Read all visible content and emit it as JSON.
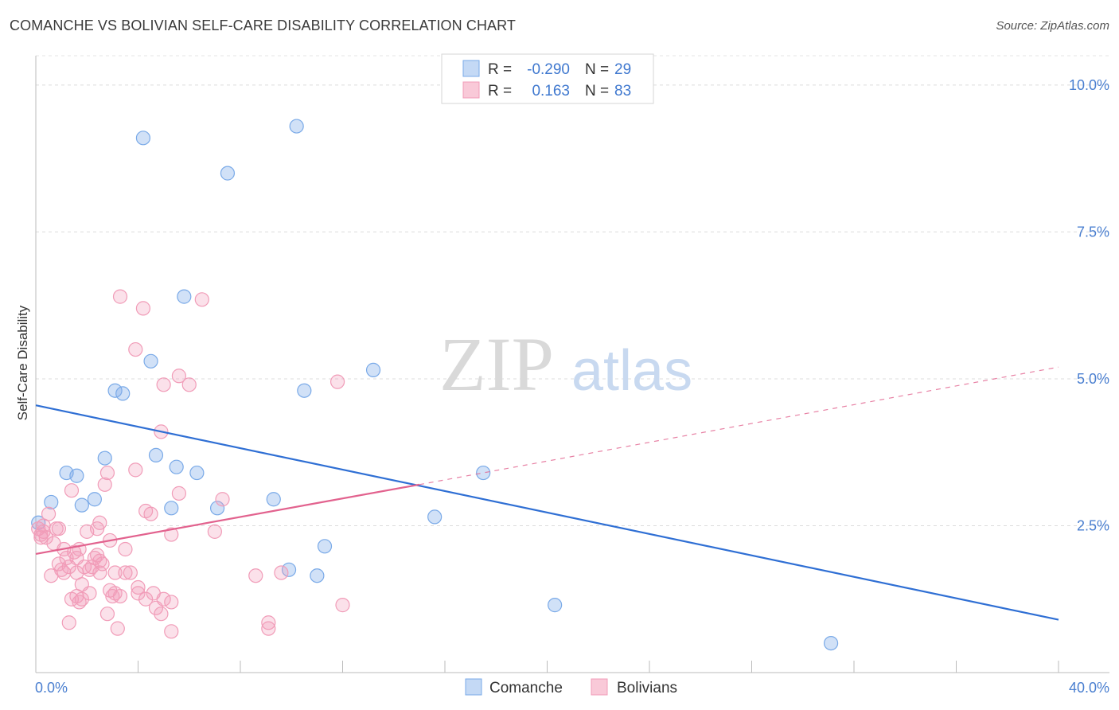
{
  "title": "COMANCHE VS BOLIVIAN SELF-CARE DISABILITY CORRELATION CHART",
  "source": "Source: ZipAtlas.com",
  "watermark": {
    "zip": "ZIP",
    "atlas": "atlas"
  },
  "chart_data": {
    "type": "scatter",
    "xlabel": "",
    "ylabel": "Self-Care Disability",
    "xlim": [
      0,
      40
    ],
    "ylim": [
      0,
      10.5
    ],
    "x_tick_labels": [
      {
        "value": 0,
        "label": "0.0%"
      },
      {
        "value": 40,
        "label": "40.0%"
      }
    ],
    "x_minor_ticks": [
      0,
      4,
      8,
      12,
      16,
      20,
      24,
      28,
      32,
      36,
      40
    ],
    "y_ticks": [
      {
        "value": 2.5,
        "label": "2.5%"
      },
      {
        "value": 5.0,
        "label": "5.0%"
      },
      {
        "value": 7.5,
        "label": "7.5%"
      },
      {
        "value": 10.0,
        "label": "10.0%"
      }
    ],
    "grid": "horizontal dashed",
    "legend": {
      "placement": "top-center",
      "rows": [
        {
          "r_label": "R =",
          "r_value": "-0.290",
          "n_label": "N =",
          "n_value": "29"
        },
        {
          "r_label": "R =",
          "r_value": "0.163",
          "n_label": "N =",
          "n_value": "83"
        }
      ]
    },
    "bottom_legend": [
      "Comanche",
      "Bolivians"
    ],
    "series": [
      {
        "name": "Comanche",
        "color": "#7aaae8",
        "line_color": "#2f6fd4",
        "trend": {
          "x": [
            0,
            40
          ],
          "y": [
            4.55,
            0.9
          ]
        },
        "points": [
          [
            4.2,
            9.1
          ],
          [
            10.2,
            9.3
          ],
          [
            7.5,
            8.5
          ],
          [
            5.8,
            6.4
          ],
          [
            4.5,
            5.3
          ],
          [
            3.1,
            4.8
          ],
          [
            3.4,
            4.75
          ],
          [
            10.5,
            4.8
          ],
          [
            13.2,
            5.15
          ],
          [
            4.7,
            3.7
          ],
          [
            2.7,
            3.65
          ],
          [
            5.5,
            3.5
          ],
          [
            6.3,
            3.4
          ],
          [
            1.2,
            3.4
          ],
          [
            1.6,
            3.35
          ],
          [
            17.5,
            3.4
          ],
          [
            0.6,
            2.9
          ],
          [
            1.8,
            2.85
          ],
          [
            2.3,
            2.95
          ],
          [
            9.3,
            2.95
          ],
          [
            5.3,
            2.8
          ],
          [
            7.1,
            2.8
          ],
          [
            15.6,
            2.65
          ],
          [
            0.1,
            2.55
          ],
          [
            11.3,
            2.15
          ],
          [
            9.9,
            1.75
          ],
          [
            11.0,
            1.65
          ],
          [
            20.3,
            1.15
          ],
          [
            31.1,
            0.5
          ]
        ]
      },
      {
        "name": "Bolivians",
        "color": "#f19cb8",
        "line_color": "#e2628e",
        "trend": {
          "x": [
            0,
            15
          ],
          "y": [
            2.02,
            3.2
          ]
        },
        "trend_dashed": {
          "x": [
            15,
            40
          ],
          "y": [
            3.2,
            5.2
          ]
        },
        "points": [
          [
            3.3,
            6.4
          ],
          [
            6.5,
            6.35
          ],
          [
            4.2,
            6.2
          ],
          [
            3.9,
            5.5
          ],
          [
            5.6,
            5.05
          ],
          [
            5.0,
            4.9
          ],
          [
            6.0,
            4.9
          ],
          [
            11.8,
            4.95
          ],
          [
            4.9,
            4.1
          ],
          [
            3.9,
            3.45
          ],
          [
            2.8,
            3.4
          ],
          [
            2.7,
            3.2
          ],
          [
            1.4,
            3.1
          ],
          [
            5.6,
            3.05
          ],
          [
            7.3,
            2.95
          ],
          [
            0.5,
            2.7
          ],
          [
            4.3,
            2.75
          ],
          [
            4.5,
            2.7
          ],
          [
            2.5,
            2.55
          ],
          [
            0.1,
            2.45
          ],
          [
            0.3,
            2.4
          ],
          [
            0.8,
            2.45
          ],
          [
            2.0,
            2.4
          ],
          [
            2.4,
            2.45
          ],
          [
            5.3,
            2.35
          ],
          [
            7.0,
            2.4
          ],
          [
            0.2,
            2.3
          ],
          [
            0.4,
            2.3
          ],
          [
            0.7,
            2.2
          ],
          [
            1.1,
            2.1
          ],
          [
            1.5,
            2.05
          ],
          [
            1.7,
            2.1
          ],
          [
            2.9,
            2.25
          ],
          [
            3.5,
            2.1
          ],
          [
            1.2,
            1.95
          ],
          [
            1.6,
            1.95
          ],
          [
            2.3,
            1.95
          ],
          [
            2.5,
            1.9
          ],
          [
            0.9,
            1.85
          ],
          [
            1.3,
            1.8
          ],
          [
            1.9,
            1.8
          ],
          [
            2.6,
            1.85
          ],
          [
            1.0,
            1.75
          ],
          [
            1.6,
            1.7
          ],
          [
            2.1,
            1.75
          ],
          [
            2.5,
            1.7
          ],
          [
            3.1,
            1.7
          ],
          [
            3.5,
            1.7
          ],
          [
            3.7,
            1.7
          ],
          [
            8.6,
            1.65
          ],
          [
            9.6,
            1.7
          ],
          [
            0.6,
            1.65
          ],
          [
            1.8,
            1.5
          ],
          [
            2.9,
            1.4
          ],
          [
            1.6,
            1.3
          ],
          [
            2.1,
            1.35
          ],
          [
            3.1,
            1.35
          ],
          [
            4.0,
            1.35
          ],
          [
            4.6,
            1.35
          ],
          [
            1.4,
            1.25
          ],
          [
            1.8,
            1.25
          ],
          [
            4.3,
            1.25
          ],
          [
            5.3,
            1.2
          ],
          [
            1.7,
            1.2
          ],
          [
            3.3,
            1.3
          ],
          [
            4.9,
            1.0
          ],
          [
            4.7,
            1.1
          ],
          [
            12.0,
            1.15
          ],
          [
            2.8,
            1.0
          ],
          [
            9.1,
            0.85
          ],
          [
            1.3,
            0.85
          ],
          [
            9.1,
            0.75
          ],
          [
            3.2,
            0.75
          ],
          [
            5.3,
            0.7
          ],
          [
            0.2,
            2.35
          ],
          [
            0.3,
            2.5
          ],
          [
            0.9,
            2.45
          ],
          [
            2.2,
            1.8
          ],
          [
            2.4,
            2.0
          ],
          [
            4.0,
            1.45
          ],
          [
            5.0,
            1.25
          ],
          [
            1.1,
            1.7
          ],
          [
            3.0,
            1.3
          ]
        ]
      }
    ]
  }
}
